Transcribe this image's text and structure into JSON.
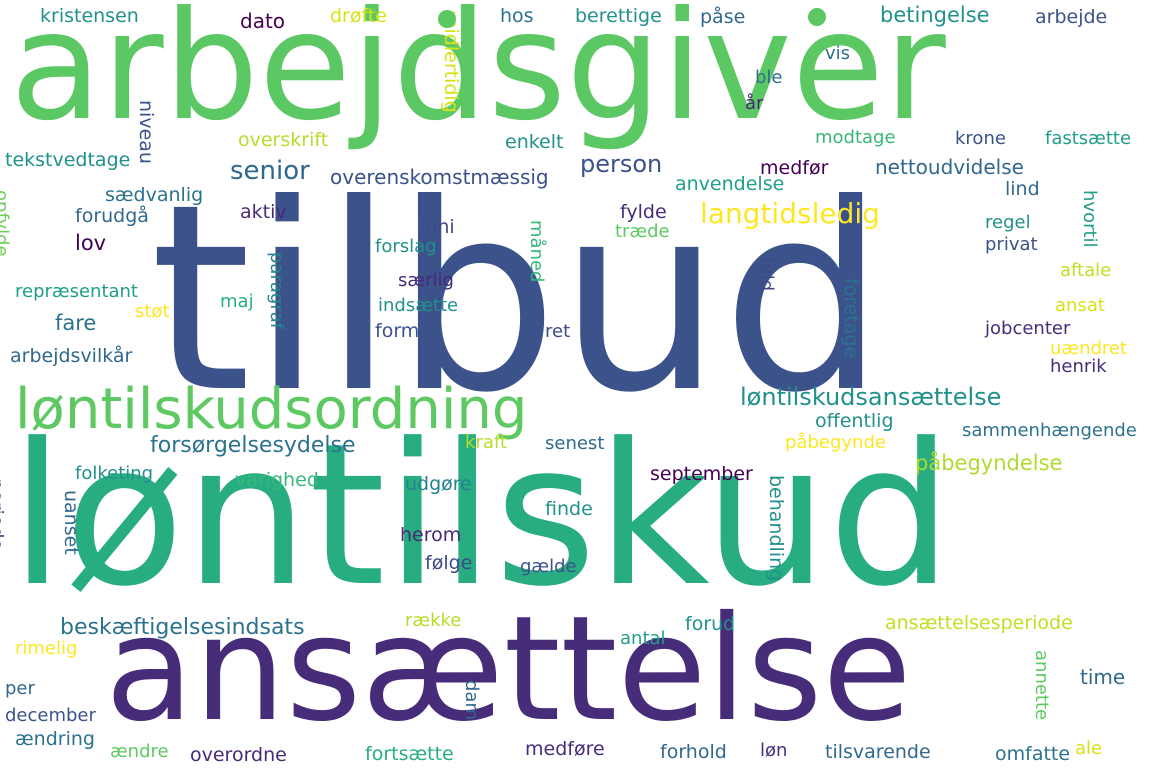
{
  "words": [
    {
      "text": "arbejdsgiver",
      "color": "#5cc863"
    },
    {
      "text": "tilbud",
      "color": "#3b528b"
    },
    {
      "text": "løntilskud",
      "color": "#27ad81"
    },
    {
      "text": "ansættelse",
      "color": "#472c7a"
    },
    {
      "text": "løntilskudsordning",
      "color": "#5ec962"
    },
    {
      "text": "løntilskudsansættelse",
      "color": "#21918c"
    },
    {
      "text": "langtidsledig",
      "color": "#fde725"
    },
    {
      "text": "forsørgelsesydelse",
      "color": "#2c728e"
    },
    {
      "text": "senior",
      "color": "#31688e"
    },
    {
      "text": "person",
      "color": "#3b528b"
    },
    {
      "text": "nettoudvidelse",
      "color": "#31688e"
    },
    {
      "text": "overenskomstmæssig",
      "color": "#3b528b"
    },
    {
      "text": "beskæftigelsesindsats",
      "color": "#2c728e"
    },
    {
      "text": "påbegyndelse",
      "color": "#addc30"
    },
    {
      "text": "ansættelsesperiode",
      "color": "#c2df23"
    },
    {
      "text": "kristensen",
      "color": "#21918c"
    },
    {
      "text": "dato",
      "color": "#440154"
    },
    {
      "text": "drøfte",
      "color": "#d8e219"
    },
    {
      "text": "hos",
      "color": "#2c728e"
    },
    {
      "text": "berettige",
      "color": "#21918c"
    },
    {
      "text": "påse",
      "color": "#31688e"
    },
    {
      "text": "betingelse",
      "color": "#21918c"
    },
    {
      "text": "arbejde",
      "color": "#3b528b"
    },
    {
      "text": "midlertidig",
      "color": "#d8e219"
    },
    {
      "text": "vis",
      "color": "#2c728e"
    },
    {
      "text": "ble",
      "color": "#2c728e"
    },
    {
      "text": "år",
      "color": "#482878"
    },
    {
      "text": "niveau",
      "color": "#3b528b"
    },
    {
      "text": "overskrift",
      "color": "#b5de2b"
    },
    {
      "text": "enkelt",
      "color": "#21918c"
    },
    {
      "text": "modtage",
      "color": "#37b878"
    },
    {
      "text": "krone",
      "color": "#3b528b"
    },
    {
      "text": "fastsætte",
      "color": "#1f9e89"
    },
    {
      "text": "tekstvedtage",
      "color": "#21918c"
    },
    {
      "text": "medfør",
      "color": "#440154"
    },
    {
      "text": "anvendelse",
      "color": "#1f9e89"
    },
    {
      "text": "lind",
      "color": "#31688e"
    },
    {
      "text": "hvortil",
      "color": "#1f9e89"
    },
    {
      "text": "sædvanlig",
      "color": "#2c728e"
    },
    {
      "text": "opfylde",
      "color": "#6ece58"
    },
    {
      "text": "forudgå",
      "color": "#31688e"
    },
    {
      "text": "aktiv",
      "color": "#482878"
    },
    {
      "text": "juni",
      "color": "#3e4989"
    },
    {
      "text": "fylde",
      "color": "#472d7b"
    },
    {
      "text": "træde",
      "color": "#5ec962"
    },
    {
      "text": "måned",
      "color": "#35b779"
    },
    {
      "text": "regel",
      "color": "#21918c"
    },
    {
      "text": "lov",
      "color": "#440154"
    },
    {
      "text": "forslag",
      "color": "#21918c"
    },
    {
      "text": "privat",
      "color": "#3b528b"
    },
    {
      "text": "paragraf",
      "color": "#26828e"
    },
    {
      "text": "særlig",
      "color": "#482878"
    },
    {
      "text": "fuld",
      "color": "#3e4989"
    },
    {
      "text": "aftale",
      "color": "#c2df23"
    },
    {
      "text": "repræsentant",
      "color": "#1f9e89"
    },
    {
      "text": "støt",
      "color": "#fde725"
    },
    {
      "text": "maj",
      "color": "#29af7f"
    },
    {
      "text": "indsætte",
      "color": "#21918c"
    },
    {
      "text": "foretage",
      "color": "#2c728e"
    },
    {
      "text": "ansat",
      "color": "#d8e219"
    },
    {
      "text": "fare",
      "color": "#2c728e"
    },
    {
      "text": "formål",
      "color": "#3b528b"
    },
    {
      "text": "ret",
      "color": "#3e4989"
    },
    {
      "text": "jobcenter",
      "color": "#472d7b"
    },
    {
      "text": "arbejdsvilkår",
      "color": "#31688e"
    },
    {
      "text": "uændret",
      "color": "#fde725"
    },
    {
      "text": "henrik",
      "color": "#472d7b"
    },
    {
      "text": "offentlig",
      "color": "#21918c"
    },
    {
      "text": "sammenhængende",
      "color": "#2c728e"
    },
    {
      "text": "kraft",
      "color": "#b5de2b"
    },
    {
      "text": "senest",
      "color": "#31688e"
    },
    {
      "text": "påbegynde",
      "color": "#fde725"
    },
    {
      "text": "folketing",
      "color": "#21918c"
    },
    {
      "text": "september",
      "color": "#440154"
    },
    {
      "text": "varighed",
      "color": "#37b878"
    },
    {
      "text": "udgøre",
      "color": "#26828e"
    },
    {
      "text": "periode",
      "color": "#3b528b"
    },
    {
      "text": "uanset",
      "color": "#31688e"
    },
    {
      "text": "finde",
      "color": "#21918c"
    },
    {
      "text": "behandling",
      "color": "#21918c"
    },
    {
      "text": "herom",
      "color": "#482878"
    },
    {
      "text": "følge",
      "color": "#3e4989"
    },
    {
      "text": "gælde",
      "color": "#3b528b"
    },
    {
      "text": "række",
      "color": "#b5de2b"
    },
    {
      "text": "forud",
      "color": "#21918c"
    },
    {
      "text": "antal",
      "color": "#1f9e89"
    },
    {
      "text": "rimelig",
      "color": "#fde725"
    },
    {
      "text": "time",
      "color": "#31688e"
    },
    {
      "text": "annette",
      "color": "#5ec962"
    },
    {
      "text": "per",
      "color": "#31688e"
    },
    {
      "text": "dam",
      "color": "#31688e"
    },
    {
      "text": "december",
      "color": "#3b528b"
    },
    {
      "text": "ændring",
      "color": "#2c728e"
    },
    {
      "text": "ændre",
      "color": "#5ec962"
    },
    {
      "text": "overordne",
      "color": "#482878"
    },
    {
      "text": "fortsætte",
      "color": "#29af7f"
    },
    {
      "text": "medføre",
      "color": "#472d7b"
    },
    {
      "text": "forhold",
      "color": "#31688e"
    },
    {
      "text": "løn",
      "color": "#472d7b"
    },
    {
      "text": "tilsvarende",
      "color": "#31688e"
    },
    {
      "text": "omfatte",
      "color": "#2c728e"
    },
    {
      "text": "ale",
      "color": "#d8e219"
    }
  ]
}
